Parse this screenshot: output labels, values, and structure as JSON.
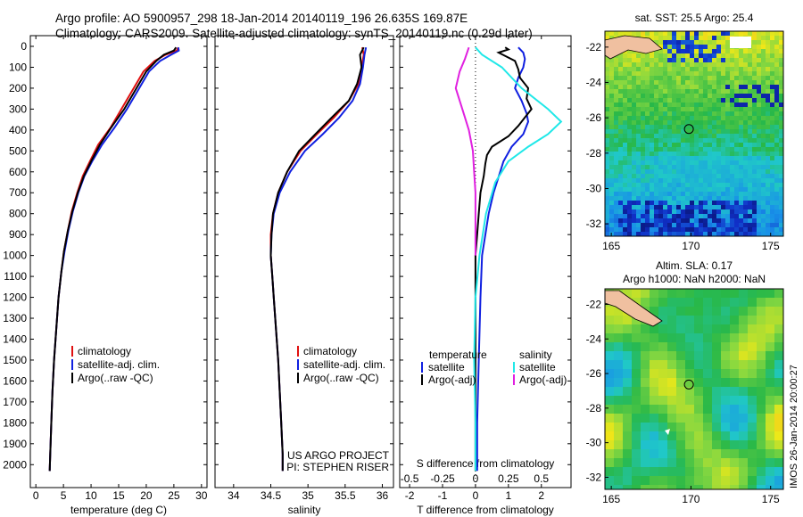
{
  "header": {
    "line1": "Argo profile: AO 5900957_298 18-Jan-2014 20140119_196 26.635S 169.87E",
    "line2": "Climatology: CARS2009. Satellite-adjusted climatology: synTS_20140119.nc (0.29d later)"
  },
  "colors": {
    "climatology": "#e01010",
    "satellite": "#1020e0",
    "argo": "#000000",
    "salinity_satellite": "#20e8e8",
    "salinity_argo": "#e020e0"
  },
  "chart_data": [
    {
      "type": "line",
      "panel": "temperature",
      "xlabel": "temperature (deg C)",
      "xlim": [
        -1,
        31
      ],
      "xticks": [
        "0",
        "5",
        "10",
        "15",
        "20",
        "25",
        "30"
      ],
      "ylim": [
        2050,
        0
      ],
      "yticks": [
        "0",
        "100",
        "200",
        "300",
        "400",
        "500",
        "600",
        "700",
        "800",
        "900",
        "1000",
        "1100",
        "1200",
        "1300",
        "1400",
        "1500",
        "1600",
        "1700",
        "1800",
        "1900",
        "2000"
      ],
      "legend": [
        "climatology",
        "satellite-adj. clim.",
        "Argo(..raw -QC)"
      ],
      "series": [
        {
          "name": "climatology",
          "color": "#e01010",
          "points": [
            [
              25.8,
              5
            ],
            [
              25.5,
              20
            ],
            [
              23.5,
              40
            ],
            [
              21.5,
              70
            ],
            [
              19.5,
              120
            ],
            [
              17.5,
              210
            ],
            [
              15.5,
              300
            ],
            [
              13.5,
              390
            ],
            [
              11.3,
              470
            ],
            [
              9.8,
              550
            ],
            [
              8.5,
              620
            ],
            [
              7.5,
              700
            ],
            [
              6.5,
              790
            ],
            [
              5.8,
              880
            ],
            [
              5.1,
              980
            ],
            [
              4.6,
              1080
            ],
            [
              4.1,
              1200
            ],
            [
              3.7,
              1350
            ],
            [
              3.3,
              1500
            ],
            [
              3.0,
              1650
            ],
            [
              2.8,
              1800
            ],
            [
              2.6,
              1950
            ],
            [
              2.5,
              2030
            ]
          ]
        },
        {
          "name": "satellite-adj. clim.",
          "color": "#1020e0",
          "points": [
            [
              25.8,
              5
            ],
            [
              25.9,
              20
            ],
            [
              24.5,
              40
            ],
            [
              22.5,
              70
            ],
            [
              20.5,
              120
            ],
            [
              18.5,
              210
            ],
            [
              16.5,
              300
            ],
            [
              14.2,
              390
            ],
            [
              12.0,
              470
            ],
            [
              10.2,
              550
            ],
            [
              8.8,
              620
            ],
            [
              7.7,
              700
            ],
            [
              6.7,
              790
            ],
            [
              5.9,
              880
            ],
            [
              5.2,
              980
            ],
            [
              4.6,
              1080
            ],
            [
              4.1,
              1200
            ],
            [
              3.7,
              1350
            ],
            [
              3.3,
              1500
            ],
            [
              3.0,
              1650
            ],
            [
              2.8,
              1800
            ],
            [
              2.6,
              1950
            ],
            [
              2.5,
              2030
            ]
          ]
        },
        {
          "name": "Argo(..raw -QC)",
          "color": "#000000",
          "points": [
            [
              25.4,
              5
            ],
            [
              25.0,
              20
            ],
            [
              23.2,
              40
            ],
            [
              21.8,
              70
            ],
            [
              20.0,
              120
            ],
            [
              18.0,
              210
            ],
            [
              16.0,
              300
            ],
            [
              13.6,
              390
            ],
            [
              11.6,
              470
            ],
            [
              10.0,
              550
            ],
            [
              8.7,
              620
            ],
            [
              7.6,
              700
            ],
            [
              6.6,
              790
            ],
            [
              5.8,
              880
            ],
            [
              5.1,
              980
            ],
            [
              4.6,
              1080
            ],
            [
              4.1,
              1200
            ],
            [
              3.7,
              1350
            ],
            [
              3.3,
              1500
            ],
            [
              3.0,
              1650
            ],
            [
              2.8,
              1800
            ],
            [
              2.6,
              1950
            ],
            [
              2.5,
              2030
            ]
          ]
        }
      ]
    },
    {
      "type": "line",
      "panel": "salinity",
      "xlabel": "salinity",
      "xlim": [
        33.75,
        36.15
      ],
      "xticks": [
        "34",
        "34.5",
        "35",
        "35.5",
        "36"
      ],
      "ylim": [
        2050,
        0
      ],
      "legend": [
        "climatology",
        "satellite-adj. clim.",
        "Argo(..raw -QC)"
      ],
      "annotation": [
        "US ARGO PROJECT",
        "PI: STEPHEN RISER"
      ],
      "series": [
        {
          "name": "climatology",
          "color": "#e01010",
          "points": [
            [
              35.73,
              5
            ],
            [
              35.75,
              40
            ],
            [
              35.72,
              100
            ],
            [
              35.68,
              180
            ],
            [
              35.55,
              260
            ],
            [
              35.35,
              340
            ],
            [
              35.12,
              420
            ],
            [
              34.9,
              500
            ],
            [
              34.72,
              600
            ],
            [
              34.6,
              700
            ],
            [
              34.53,
              800
            ],
            [
              34.5,
              900
            ],
            [
              34.5,
              1000
            ],
            [
              34.52,
              1100
            ],
            [
              34.54,
              1200
            ],
            [
              34.57,
              1350
            ],
            [
              34.6,
              1500
            ],
            [
              34.62,
              1650
            ],
            [
              34.64,
              1800
            ],
            [
              34.66,
              1950
            ],
            [
              34.66,
              2030
            ]
          ]
        },
        {
          "name": "satellite-adj. clim.",
          "color": "#1020e0",
          "points": [
            [
              35.78,
              5
            ],
            [
              35.76,
              40
            ],
            [
              35.74,
              100
            ],
            [
              35.7,
              180
            ],
            [
              35.6,
              260
            ],
            [
              35.42,
              340
            ],
            [
              35.2,
              420
            ],
            [
              34.96,
              500
            ],
            [
              34.76,
              600
            ],
            [
              34.62,
              700
            ],
            [
              34.54,
              800
            ],
            [
              34.51,
              900
            ],
            [
              34.5,
              1000
            ],
            [
              34.52,
              1100
            ],
            [
              34.54,
              1200
            ],
            [
              34.57,
              1350
            ],
            [
              34.6,
              1500
            ],
            [
              34.62,
              1650
            ],
            [
              34.64,
              1800
            ],
            [
              34.66,
              1950
            ],
            [
              34.66,
              2030
            ]
          ]
        },
        {
          "name": "Argo(..raw -QC)",
          "color": "#000000",
          "points": [
            [
              35.75,
              5
            ],
            [
              35.7,
              40
            ],
            [
              35.72,
              100
            ],
            [
              35.66,
              180
            ],
            [
              35.55,
              260
            ],
            [
              35.32,
              340
            ],
            [
              35.1,
              420
            ],
            [
              34.88,
              500
            ],
            [
              34.72,
              600
            ],
            [
              34.6,
              700
            ],
            [
              34.53,
              800
            ],
            [
              34.51,
              900
            ],
            [
              34.5,
              1000
            ],
            [
              34.52,
              1100
            ],
            [
              34.54,
              1200
            ],
            [
              34.57,
              1350
            ],
            [
              34.6,
              1500
            ],
            [
              34.62,
              1650
            ],
            [
              34.64,
              1800
            ],
            [
              34.66,
              1950
            ],
            [
              34.66,
              2030
            ]
          ]
        }
      ]
    },
    {
      "type": "line",
      "panel": "differences",
      "xlabel": "T difference from climatology",
      "xlabel_top": "S difference from climatology",
      "xlim": [
        -2.3,
        2.9
      ],
      "xticks": [
        "-2",
        "-1",
        "0",
        "1",
        "2"
      ],
      "xticks_s": [
        "-0.5",
        "-0.25",
        "0",
        "0.25",
        "0.5"
      ],
      "ylim": [
        2050,
        0
      ],
      "legend": {
        "temperature": [
          "temperature",
          "satellite",
          "Argo(-adj)"
        ],
        "salinity": [
          "salinity",
          "satellite",
          "Argo(-adj)"
        ]
      },
      "series": [
        {
          "name": "satellite",
          "group": "temperature",
          "color": "#1020e0",
          "points": [
            [
              1.3,
              5
            ],
            [
              1.45,
              30
            ],
            [
              1.5,
              60
            ],
            [
              1.45,
              100
            ],
            [
              1.3,
              150
            ],
            [
              1.2,
              200
            ],
            [
              1.4,
              260
            ],
            [
              1.55,
              320
            ],
            [
              1.6,
              360
            ],
            [
              1.45,
              420
            ],
            [
              1.1,
              480
            ],
            [
              0.85,
              550
            ],
            [
              0.75,
              600
            ],
            [
              0.55,
              700
            ],
            [
              0.4,
              800
            ],
            [
              0.3,
              900
            ],
            [
              0.2,
              1000
            ],
            [
              0.15,
              1200
            ],
            [
              0.1,
              1500
            ],
            [
              0.05,
              1800
            ],
            [
              0.05,
              2030
            ]
          ]
        },
        {
          "name": "Argo(-adj)",
          "group": "temperature",
          "color": "#000000",
          "points": [
            [
              0.9,
              5
            ],
            [
              1.0,
              15
            ],
            [
              0.7,
              30
            ],
            [
              1.2,
              70
            ],
            [
              1.3,
              110
            ],
            [
              1.35,
              150
            ],
            [
              1.6,
              200
            ],
            [
              1.55,
              250
            ],
            [
              1.7,
              300
            ],
            [
              1.5,
              340
            ],
            [
              1.3,
              380
            ],
            [
              1.0,
              430
            ],
            [
              0.5,
              480
            ],
            [
              0.35,
              520
            ],
            [
              0.3,
              560
            ],
            [
              0.25,
              620
            ],
            [
              0.15,
              700
            ],
            [
              0.1,
              800
            ],
            [
              0.05,
              900
            ],
            [
              0.0,
              1000
            ],
            [
              0.0,
              1500
            ],
            [
              0.0,
              2030
            ]
          ]
        },
        {
          "name": "satellite",
          "group": "salinity",
          "color": "#20e8e8",
          "points": [
            [
              0.0,
              5
            ],
            [
              0.05,
              40
            ],
            [
              0.2,
              100
            ],
            [
              0.35,
              200
            ],
            [
              0.55,
              300
            ],
            [
              0.65,
              360
            ],
            [
              0.55,
              420
            ],
            [
              0.4,
              480
            ],
            [
              0.25,
              550
            ],
            [
              0.15,
              650
            ],
            [
              0.08,
              800
            ],
            [
              0.03,
              1000
            ],
            [
              0.0,
              1200
            ],
            [
              -0.01,
              1500
            ],
            [
              0.0,
              1800
            ],
            [
              0.0,
              2030
            ]
          ]
        },
        {
          "name": "Argo(-adj)",
          "group": "salinity",
          "color": "#e020e0",
          "points": [
            [
              -0.05,
              5
            ],
            [
              -0.08,
              60
            ],
            [
              -0.12,
              120
            ],
            [
              -0.15,
              200
            ],
            [
              -0.1,
              300
            ],
            [
              -0.05,
              400
            ],
            [
              -0.02,
              500
            ],
            [
              -0.01,
              600
            ],
            [
              0.0,
              700
            ],
            [
              0.0,
              1000
            ]
          ]
        }
      ]
    },
    {
      "type": "heatmap",
      "panel": "sst-map",
      "title": "sat. SST: 25.5 Argo: 25.4",
      "xticks": [
        "165",
        "170",
        "175"
      ],
      "yticks": [
        "-22",
        "-24",
        "-26",
        "-28",
        "-30",
        "-32"
      ],
      "xlim": [
        164.6,
        175.8
      ],
      "ylim": [
        -32.7,
        -21.1
      ],
      "marker": {
        "lon": 169.87,
        "lat": -26.635
      }
    },
    {
      "type": "heatmap",
      "panel": "sla-map",
      "title": [
        "Altim. SLA: 0.17",
        "Argo h1000: NaN h2000: NaN"
      ],
      "xticks": [
        "165",
        "170",
        "175"
      ],
      "yticks": [
        "-22",
        "-24",
        "-26",
        "-28",
        "-30",
        "-32"
      ],
      "xlim": [
        164.6,
        175.8
      ],
      "ylim": [
        -32.7,
        -21.1
      ],
      "marker": {
        "lon": 169.87,
        "lat": -26.635
      },
      "credit": "IMOS 26-Jan-2014 20:00:27"
    }
  ]
}
